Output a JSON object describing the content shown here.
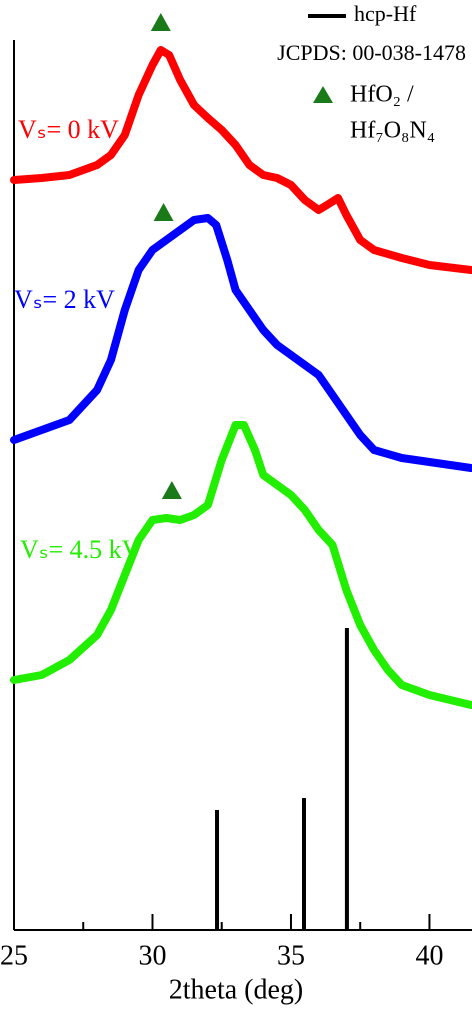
{
  "chart_data": {
    "type": "line",
    "xlabel": "2theta (deg)",
    "xlim": [
      25,
      41.5
    ],
    "xticks": [
      25,
      30,
      35,
      40
    ],
    "xminor": [
      27.5,
      32.5,
      37.5
    ],
    "ylim": [
      0,
      930
    ],
    "series": [
      {
        "name": "Vₛ= 0 kV",
        "color": "#ff0000",
        "x": [
          25,
          26,
          27,
          28,
          28.5,
          29,
          29.5,
          30,
          30.3,
          30.6,
          31,
          31.5,
          32,
          32.5,
          33,
          33.5,
          34,
          34.5,
          35,
          35.5,
          36,
          36.3,
          36.7,
          37,
          37.5,
          38,
          39,
          40,
          41.5
        ],
        "values": [
          750,
          752,
          755,
          765,
          775,
          795,
          835,
          865,
          880,
          875,
          850,
          825,
          812,
          800,
          785,
          765,
          755,
          752,
          745,
          730,
          720,
          725,
          732,
          715,
          690,
          680,
          672,
          665,
          660
        ]
      },
      {
        "name": "Vₛ= 2 kV",
        "color": "#0000ff",
        "x": [
          25,
          26,
          27,
          28,
          28.5,
          29,
          29.5,
          30,
          30.5,
          31,
          31.5,
          32,
          32.3,
          32.7,
          33,
          33.5,
          34,
          34.5,
          35,
          36,
          36.5,
          37,
          37.5,
          38,
          39,
          40,
          41.5
        ],
        "values": [
          490,
          500,
          510,
          540,
          570,
          620,
          660,
          680,
          690,
          700,
          710,
          712,
          705,
          670,
          640,
          620,
          600,
          585,
          575,
          555,
          535,
          515,
          495,
          480,
          472,
          468,
          462
        ]
      },
      {
        "name": "Vₛ= 4.5 kV",
        "color": "#22ee00",
        "x": [
          25,
          26,
          27,
          28,
          28.5,
          29,
          29.5,
          30,
          30.5,
          31,
          31.5,
          32,
          32.5,
          33,
          33.3,
          33.7,
          34,
          34.5,
          35,
          35.5,
          36,
          36.5,
          37,
          37.5,
          38,
          38.5,
          39,
          40,
          41.5
        ],
        "values": [
          250,
          255,
          270,
          295,
          320,
          355,
          390,
          410,
          412,
          410,
          415,
          425,
          470,
          505,
          505,
          480,
          455,
          445,
          435,
          420,
          400,
          385,
          340,
          305,
          280,
          260,
          245,
          235,
          225
        ]
      }
    ],
    "reference": {
      "name": "hcp-Hf",
      "source": "JCPDS: 00-038-1478",
      "color": "#000000",
      "x": [
        32.33,
        35.47,
        37.02
      ],
      "values": [
        120,
        132,
        302
      ]
    },
    "phase_markers": {
      "name": [
        "HfO₂ /",
        "Hf₇O₈N₄"
      ],
      "color": "#1a7a1a",
      "x": [
        30.3,
        30.4,
        30.7
      ],
      "values": [
        908,
        718,
        440
      ]
    }
  }
}
